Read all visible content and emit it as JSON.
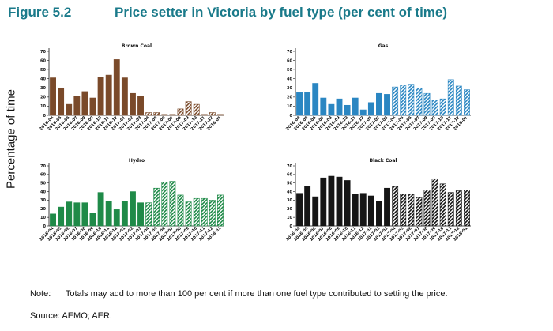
{
  "figure": {
    "number": "Figure 5.2",
    "title": "Price setter in Victoria by fuel type (per cent of time)"
  },
  "y_axis_label": "Percentage of time",
  "note": {
    "label": "Note:",
    "text": "Totals may add to more than 100 per cent if more than one fuel type contributed to setting the price."
  },
  "source": {
    "label": "Source:",
    "text": "AEMO; AER."
  },
  "chart_data": [
    {
      "type": "bar",
      "title": "Brown Coal",
      "color": "#7a4a2a",
      "categories": [
        "2016-04",
        "2016-05",
        "2016-06",
        "2016-07",
        "2016-08",
        "2016-09",
        "2016-10",
        "2016-11",
        "2016-12",
        "2017-01",
        "2017-02",
        "2017-03",
        "2017-04",
        "2017-05",
        "2017-06",
        "2017-07",
        "2017-08",
        "2017-09",
        "2017-10",
        "2017-11",
        "2017-12",
        "2018-01"
      ],
      "values": [
        41,
        30,
        12,
        21,
        26,
        19,
        42,
        44,
        61,
        41,
        24,
        21,
        3,
        3,
        1,
        1,
        7,
        15,
        12,
        1,
        3,
        1
      ],
      "hatched_from_index": 12,
      "ylim": [
        0,
        70
      ],
      "yticks": [
        0,
        10,
        20,
        30,
        40,
        50,
        60,
        70
      ]
    },
    {
      "type": "bar",
      "title": "Gas",
      "color": "#2a86c2",
      "categories": [
        "2016-04",
        "2016-05",
        "2016-06",
        "2016-07",
        "2016-08",
        "2016-09",
        "2016-10",
        "2016-11",
        "2016-12",
        "2017-01",
        "2017-02",
        "2017-03",
        "2017-04",
        "2017-05",
        "2017-06",
        "2017-07",
        "2017-08",
        "2017-09",
        "2017-10",
        "2017-11",
        "2017-12",
        "2018-01"
      ],
      "values": [
        25,
        25,
        35,
        19,
        12,
        18,
        11,
        19,
        6,
        14,
        24,
        23,
        31,
        33,
        34,
        30,
        24,
        17,
        18,
        39,
        32,
        28
      ],
      "hatched_from_index": 12,
      "ylim": [
        0,
        70
      ],
      "yticks": [
        0,
        10,
        20,
        30,
        40,
        50,
        60,
        70
      ]
    },
    {
      "type": "bar",
      "title": "Hydro",
      "color": "#1f8a48",
      "categories": [
        "2016-04",
        "2016-05",
        "2016-06",
        "2016-07",
        "2016-08",
        "2016-09",
        "2016-10",
        "2016-11",
        "2016-12",
        "2017-01",
        "2017-02",
        "2017-03",
        "2017-04",
        "2017-05",
        "2017-06",
        "2017-07",
        "2017-08",
        "2017-09",
        "2017-10",
        "2017-11",
        "2017-12",
        "2018-01"
      ],
      "values": [
        14,
        22,
        28,
        27,
        27,
        15,
        39,
        29,
        19,
        29,
        40,
        27,
        27,
        44,
        51,
        52,
        36,
        28,
        32,
        32,
        30,
        36
      ],
      "hatched_from_index": 12,
      "ylim": [
        0,
        70
      ],
      "yticks": [
        0,
        10,
        20,
        30,
        40,
        50,
        60,
        70
      ]
    },
    {
      "type": "bar",
      "title": "Black Coal",
      "color": "#151515",
      "categories": [
        "2016-04",
        "2016-05",
        "2016-06",
        "2016-07",
        "2016-08",
        "2016-09",
        "2016-10",
        "2016-11",
        "2016-12",
        "2017-01",
        "2017-02",
        "2017-03",
        "2017-04",
        "2017-05",
        "2017-06",
        "2017-07",
        "2017-08",
        "2017-09",
        "2017-10",
        "2017-11",
        "2017-12",
        "2018-01"
      ],
      "values": [
        38,
        46,
        34,
        56,
        58,
        57,
        53,
        37,
        38,
        35,
        29,
        44,
        46,
        37,
        37,
        33,
        42,
        55,
        49,
        39,
        41,
        42
      ],
      "hatched_from_index": 12,
      "ylim": [
        0,
        70
      ],
      "yticks": [
        0,
        10,
        20,
        30,
        40,
        50,
        60,
        70
      ]
    }
  ]
}
